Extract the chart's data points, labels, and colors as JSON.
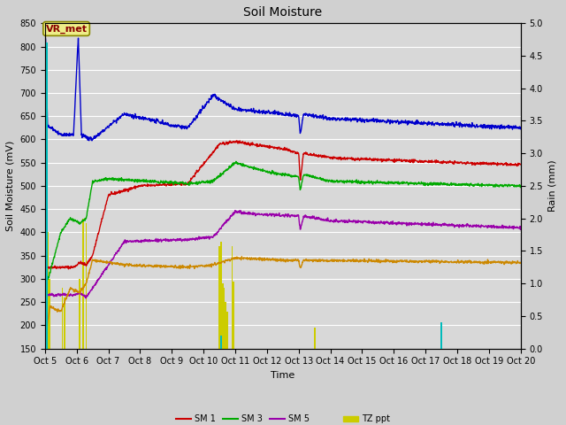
{
  "title": "Soil Moisture",
  "xlabel": "Time",
  "ylabel_left": "Soil Moisture (mV)",
  "ylabel_right": "Rain (mm)",
  "ylim_left": [
    150,
    850
  ],
  "ylim_right": [
    0.0,
    5.0
  ],
  "yticks_left": [
    150,
    200,
    250,
    300,
    350,
    400,
    450,
    500,
    550,
    600,
    650,
    700,
    750,
    800,
    850
  ],
  "yticks_right": [
    0.0,
    0.5,
    1.0,
    1.5,
    2.0,
    2.5,
    3.0,
    3.5,
    4.0,
    4.5,
    5.0
  ],
  "fig_width": 6.4,
  "fig_height": 4.8,
  "dpi": 100,
  "bg_color": "#d8d8d8",
  "plot_bg_color": "#d8d8d8",
  "sm1_color": "#cc0000",
  "sm2_color": "#cc8800",
  "sm3_color": "#00aa00",
  "sm4_color": "#0000cc",
  "sm5_color": "#9900aa",
  "precip_color": "#00bbbb",
  "tz_color": "#cccc00",
  "annotation_box_facecolor": "#eeee88",
  "annotation_text_color": "#880000",
  "annotation_edge_color": "#888800",
  "grid_color": "#ffffff",
  "title_fontsize": 10,
  "axis_label_fontsize": 8,
  "tick_fontsize": 7,
  "legend_fontsize": 7
}
